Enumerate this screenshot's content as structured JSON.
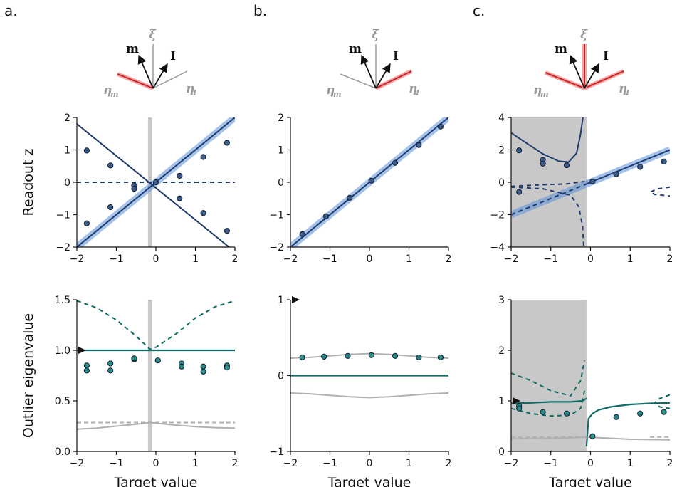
{
  "panel_labels": [
    "a.",
    "b.",
    "c."
  ],
  "vector_labels": {
    "m": "m",
    "I": "I",
    "xi": "ξ",
    "eta_m": "η",
    "eta_m_sub": "m",
    "eta_I": "η",
    "eta_I_sub": "I"
  },
  "colors": {
    "navy": "#1f3a6b",
    "band": "#5b8fd8",
    "teal": "#0f6b63",
    "teal_dot": "#2a8a85",
    "grey": "#b0b0b0",
    "shade": "#c8c8c8",
    "red": "#cc2222"
  },
  "chart_data": [
    {
      "id": "a-top",
      "type": "line",
      "xlabel": "",
      "ylabel": "Readout z",
      "xlim": [
        -2,
        2
      ],
      "ylim": [
        -2,
        2
      ],
      "xticks": [
        "−2",
        "−1",
        "0",
        "1",
        "2"
      ],
      "yticks": [
        "−2",
        "−1",
        "0",
        "1",
        "2"
      ],
      "shade": [
        -0.2,
        -0.1
      ],
      "series": [
        {
          "style": "band",
          "x": [
            -2,
            2
          ],
          "y": [
            -2,
            2
          ]
        },
        {
          "style": "navy-solid",
          "x": [
            -2,
            2
          ],
          "y": [
            -2,
            2
          ]
        },
        {
          "style": "navy-solid",
          "x": [
            -2,
            1.85
          ],
          "y": [
            1.8,
            -2
          ]
        },
        {
          "style": "navy-dashed",
          "x": [
            -2,
            2
          ],
          "y": [
            0,
            0
          ]
        }
      ],
      "points": [
        {
          "x": -1.75,
          "y": 0.98
        },
        {
          "x": -1.75,
          "y": -1.27
        },
        {
          "x": -1.15,
          "y": 0.52
        },
        {
          "x": -1.15,
          "y": -0.77
        },
        {
          "x": -0.55,
          "y": -0.1
        },
        {
          "x": -0.55,
          "y": -0.2
        },
        {
          "x": 0.0,
          "y": 0.0
        },
        {
          "x": 0.6,
          "y": 0.2
        },
        {
          "x": 0.6,
          "y": -0.5
        },
        {
          "x": 1.2,
          "y": 0.78
        },
        {
          "x": 1.2,
          "y": -0.95
        },
        {
          "x": 1.8,
          "y": 1.22
        },
        {
          "x": 1.8,
          "y": -1.5
        }
      ]
    },
    {
      "id": "b-top",
      "type": "line",
      "xlabel": "",
      "ylabel": "",
      "xlim": [
        -2,
        2
      ],
      "ylim": [
        -2,
        2
      ],
      "xticks": [
        "−2",
        "−1",
        "0",
        "1",
        "2"
      ],
      "yticks": [
        "−2",
        "−1",
        "0",
        "1",
        "2"
      ],
      "series": [
        {
          "style": "band",
          "x": [
            -2,
            2
          ],
          "y": [
            -2,
            2
          ]
        },
        {
          "style": "navy-solid",
          "x": [
            -2,
            2
          ],
          "y": [
            -2,
            2
          ]
        }
      ],
      "points": [
        {
          "x": -1.7,
          "y": -1.6
        },
        {
          "x": -1.1,
          "y": -1.05
        },
        {
          "x": -0.5,
          "y": -0.48
        },
        {
          "x": 0.05,
          "y": 0.05
        },
        {
          "x": 0.65,
          "y": 0.6
        },
        {
          "x": 1.25,
          "y": 1.15
        },
        {
          "x": 1.8,
          "y": 1.72
        }
      ]
    },
    {
      "id": "c-top",
      "type": "line",
      "xlabel": "",
      "ylabel": "",
      "xlim": [
        -2,
        2
      ],
      "ylim": [
        -4,
        4
      ],
      "xticks": [
        "−2",
        "−1",
        "0",
        "1",
        "2"
      ],
      "yticks": [
        "−4",
        "−2",
        "0",
        "2",
        "4"
      ],
      "shade": [
        -2,
        -0.1
      ],
      "series": [
        {
          "style": "band",
          "x": [
            -2,
            2
          ],
          "y": [
            -2,
            2
          ]
        },
        {
          "style": "navy-solid",
          "x": [
            -0.1,
            2
          ],
          "y": [
            -0.1,
            2
          ]
        },
        {
          "style": "navy-dashed",
          "x": [
            -2,
            -0.1
          ],
          "y": [
            -2,
            -0.1
          ]
        },
        {
          "style": "navy-solid",
          "x": [
            -2,
            -1.6,
            -1.2,
            -0.8,
            -0.55,
            -0.35,
            -0.25,
            -0.18
          ],
          "y": [
            3.05,
            2.4,
            1.75,
            1.3,
            1.25,
            1.8,
            3.0,
            4.2
          ]
        },
        {
          "style": "navy-dashed",
          "x": [
            -2,
            -1.2,
            -0.5,
            -0.3,
            -0.2,
            -0.17
          ],
          "y": [
            -0.3,
            -0.4,
            -0.8,
            -1.5,
            -2.7,
            -4.0
          ]
        },
        {
          "style": "navy-dashed",
          "x": [
            -2,
            -1.2,
            -0.6,
            -0.15
          ],
          "y": [
            -0.25,
            -0.15,
            -0.1,
            0.05
          ]
        },
        {
          "style": "navy-dashed",
          "x": [
            2,
            1.7,
            1.5,
            1.62,
            2
          ],
          "y": [
            -0.3,
            -0.4,
            -0.6,
            -0.75,
            -0.85
          ]
        }
      ],
      "points": [
        {
          "x": -1.8,
          "y": 1.97
        },
        {
          "x": -1.8,
          "y": -0.6
        },
        {
          "x": -1.2,
          "y": 1.38
        },
        {
          "x": -1.2,
          "y": 1.15
        },
        {
          "x": -0.6,
          "y": 1.05
        },
        {
          "x": 0.05,
          "y": 0.05
        },
        {
          "x": 0.65,
          "y": 0.5
        },
        {
          "x": 1.25,
          "y": 0.95
        },
        {
          "x": 1.85,
          "y": 1.28
        }
      ]
    },
    {
      "id": "a-bottom",
      "type": "line",
      "xlabel": "Target value",
      "ylabel": "Outlier eigenvalue",
      "xlim": [
        -2,
        2
      ],
      "ylim": [
        0,
        1.5
      ],
      "xticks": [
        "−2",
        "−1",
        "0",
        "1",
        "2"
      ],
      "yticks": [
        "0.0",
        "0.5",
        "1.0",
        "1.5"
      ],
      "shade": [
        -0.2,
        -0.1
      ],
      "arrow_y": 1.0,
      "series": [
        {
          "style": "teal-dashed",
          "x": [
            -2,
            -1.5,
            -1.0,
            -0.5,
            -0.15,
            0.0,
            0.5,
            1.0,
            1.5,
            2.0
          ],
          "y": [
            1.49,
            1.42,
            1.3,
            1.14,
            1.01,
            1.03,
            1.16,
            1.32,
            1.43,
            1.49
          ]
        },
        {
          "style": "teal-solid",
          "x": [
            -2,
            2
          ],
          "y": [
            1.0,
            1.0
          ]
        },
        {
          "style": "grey-dashed",
          "x": [
            -2,
            2
          ],
          "y": [
            0.285,
            0.285
          ]
        },
        {
          "style": "grey-solid",
          "x": [
            -2,
            -1.5,
            -1.0,
            -0.5,
            -0.15,
            0.0,
            0.5,
            1.0,
            1.5,
            2.0
          ],
          "y": [
            0.22,
            0.23,
            0.25,
            0.27,
            0.285,
            0.28,
            0.26,
            0.245,
            0.235,
            0.23
          ]
        }
      ],
      "points": [
        {
          "x": -1.75,
          "y": 0.85
        },
        {
          "x": -1.75,
          "y": 0.8
        },
        {
          "x": -1.15,
          "y": 0.87
        },
        {
          "x": -1.15,
          "y": 0.8
        },
        {
          "x": -0.55,
          "y": 0.91
        },
        {
          "x": -0.55,
          "y": 0.92
        },
        {
          "x": 0.05,
          "y": 0.9
        },
        {
          "x": 0.65,
          "y": 0.87
        },
        {
          "x": 0.65,
          "y": 0.84
        },
        {
          "x": 1.2,
          "y": 0.84
        },
        {
          "x": 1.2,
          "y": 0.79
        },
        {
          "x": 1.8,
          "y": 0.85
        },
        {
          "x": 1.8,
          "y": 0.83
        }
      ]
    },
    {
      "id": "b-bottom",
      "type": "line",
      "xlabel": "Target value",
      "ylabel": "",
      "xlim": [
        -2,
        2
      ],
      "ylim": [
        -1,
        1
      ],
      "xticks": [
        "−2",
        "−1",
        "0",
        "1",
        "2"
      ],
      "yticks": [
        "−1",
        "0",
        "1"
      ],
      "arrow_y": 1.0,
      "series": [
        {
          "style": "grey-solid",
          "x": [
            -2,
            -1.5,
            -1.0,
            -0.5,
            0.0,
            0.5,
            1.0,
            1.5,
            2.0
          ],
          "y": [
            0.23,
            0.24,
            0.26,
            0.28,
            0.29,
            0.28,
            0.26,
            0.24,
            0.23
          ]
        },
        {
          "style": "grey-solid",
          "x": [
            -2,
            -1.5,
            -1.0,
            -0.5,
            0.0,
            0.5,
            1.0,
            1.5,
            2.0
          ],
          "y": [
            -0.23,
            -0.24,
            -0.26,
            -0.28,
            -0.29,
            -0.28,
            -0.26,
            -0.24,
            -0.23
          ]
        },
        {
          "style": "teal-solid",
          "x": [
            -2,
            2
          ],
          "y": [
            0,
            0
          ]
        }
      ],
      "points": [
        {
          "x": -1.7,
          "y": 0.24
        },
        {
          "x": -1.15,
          "y": 0.25
        },
        {
          "x": -0.55,
          "y": 0.26
        },
        {
          "x": 0.05,
          "y": 0.27
        },
        {
          "x": 0.65,
          "y": 0.26
        },
        {
          "x": 1.25,
          "y": 0.24
        },
        {
          "x": 1.8,
          "y": 0.24
        }
      ]
    },
    {
      "id": "c-bottom",
      "type": "line",
      "xlabel": "Target value",
      "ylabel": "",
      "xlim": [
        -2,
        2
      ],
      "ylim": [
        0,
        3
      ],
      "xticks": [
        "−2",
        "−1",
        "0",
        "1",
        "2"
      ],
      "yticks": [
        "0",
        "1",
        "2",
        "3"
      ],
      "shade": [
        -2,
        -0.1
      ],
      "arrow_y": 1.0,
      "series": [
        {
          "style": "teal-dashed",
          "x": [
            -2,
            -1.5,
            -1.0,
            -0.5,
            -0.25,
            -0.15
          ],
          "y": [
            1.55,
            1.4,
            1.2,
            1.1,
            1.4,
            1.8
          ]
        },
        {
          "style": "teal-dashed",
          "x": [
            -2,
            -1.5,
            -1.0,
            -0.5,
            -0.25,
            -0.15
          ],
          "y": [
            0.85,
            0.75,
            0.7,
            0.72,
            0.85,
            1.2
          ]
        },
        {
          "style": "teal-solid",
          "x": [
            -2,
            -1.5,
            -1.0,
            -0.5,
            -0.2,
            -0.1
          ],
          "y": [
            0.95,
            0.96,
            0.98,
            0.98,
            1.0,
            1.05
          ]
        },
        {
          "style": "teal-solid",
          "x": [
            -0.1,
            -0.05,
            0.05,
            0.2,
            0.5,
            1.0,
            1.5,
            2.0
          ],
          "y": [
            0.1,
            0.65,
            0.75,
            0.82,
            0.88,
            0.93,
            0.95,
            0.96
          ]
        },
        {
          "style": "teal-dashed",
          "x": [
            2,
            1.75,
            1.6,
            1.75,
            2
          ],
          "y": [
            1.12,
            1.05,
            0.95,
            0.88,
            0.85
          ]
        },
        {
          "style": "grey-dashed",
          "x": [
            -2,
            -0.1
          ],
          "y": [
            0.285,
            0.285
          ]
        },
        {
          "style": "grey-dashed",
          "x": [
            1.5,
            2
          ],
          "y": [
            0.285,
            0.285
          ]
        },
        {
          "style": "grey-solid",
          "x": [
            -2,
            -1.0,
            -0.1,
            0.5,
            1.0,
            2.0
          ],
          "y": [
            0.25,
            0.26,
            0.28,
            0.26,
            0.24,
            0.23
          ]
        }
      ],
      "points": [
        {
          "x": -1.8,
          "y": 0.9
        },
        {
          "x": -1.8,
          "y": 0.85
        },
        {
          "x": -1.2,
          "y": 0.78
        },
        {
          "x": -0.6,
          "y": 0.75
        },
        {
          "x": 0.05,
          "y": 0.3
        },
        {
          "x": 0.65,
          "y": 0.68
        },
        {
          "x": 1.25,
          "y": 0.75
        },
        {
          "x": 1.85,
          "y": 0.78
        }
      ]
    }
  ]
}
